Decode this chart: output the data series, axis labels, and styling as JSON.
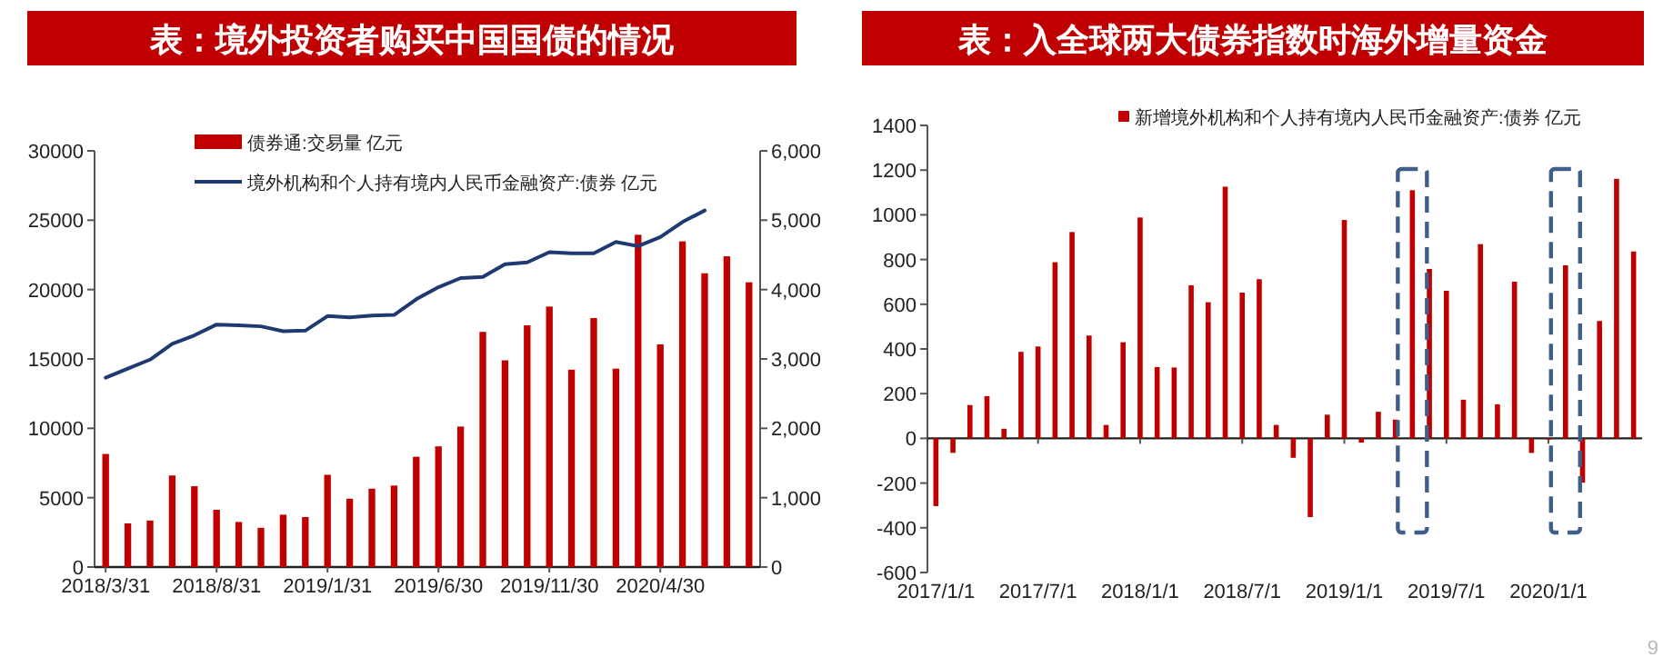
{
  "chart_data": [
    {
      "type": "bar",
      "title": "表：境外投资者购买中国国债的情况",
      "categories": [
        "2018/3/31",
        null,
        null,
        null,
        null,
        "2018/8/31",
        null,
        null,
        null,
        null,
        "2019/1/31",
        null,
        null,
        null,
        null,
        "2019/6/30",
        null,
        null,
        null,
        null,
        "2019/11/30",
        null,
        null,
        null,
        null,
        "2020/4/30",
        null,
        null,
        null,
        null
      ],
      "series": [
        {
          "name": "债券通:交易量 亿元",
          "axis": "y2",
          "color": "#c00000",
          "values": [
            1630,
            630,
            670,
            1320,
            1165,
            825,
            650,
            565,
            755,
            720,
            1330,
            985,
            1130,
            1175,
            1590,
            1740,
            2025,
            3390,
            2980,
            3485,
            3755,
            2845,
            3590,
            2860,
            4790,
            3210,
            4695,
            4235,
            4480,
            4105
          ]
        },
        {
          "name": "境外机构和个人持有境内人民币金融资产:债券 亿元",
          "type": "line",
          "color": "#1f3a70",
          "values": [
            13650,
            14300,
            14950,
            16090,
            16700,
            17480,
            17430,
            17350,
            17000,
            17040,
            18090,
            18000,
            18130,
            18170,
            19300,
            20170,
            20830,
            20910,
            21830,
            21960,
            22700,
            22610,
            22610,
            23430,
            23130,
            23780,
            24870,
            25700,
            null,
            null
          ]
        }
      ],
      "ylim": [
        0,
        30000
      ],
      "yticks": [
        0,
        5000,
        10000,
        15000,
        20000,
        25000,
        30000
      ],
      "y2lim": [
        0,
        6000
      ],
      "y2ticks": [
        {
          "value": 0,
          "label": "0"
        },
        {
          "value": 1000,
          "label": "1,000"
        },
        {
          "value": 2000,
          "label": "2,000"
        },
        {
          "value": 3000,
          "label": "3,000"
        },
        {
          "value": 4000,
          "label": "4,000"
        },
        {
          "value": 5000,
          "label": "5,000"
        },
        {
          "value": 6000,
          "label": "6,000"
        }
      ],
      "legend": "top"
    },
    {
      "type": "bar",
      "title": "表：入全球两大债券指数时海外增量资金",
      "categories": [
        "2017/1/1",
        null,
        null,
        null,
        null,
        null,
        "2017/7/1",
        null,
        null,
        null,
        null,
        null,
        "2018/1/1",
        null,
        null,
        null,
        null,
        null,
        "2018/7/1",
        null,
        null,
        null,
        null,
        null,
        "2019/1/1",
        null,
        null,
        null,
        null,
        null,
        "2019/7/1",
        null,
        null,
        null,
        null,
        null,
        "2020/1/1",
        null,
        null,
        null,
        null,
        null
      ],
      "series": [
        {
          "name": "新增境外机构和个人持有境内人民币金融资产:债券 亿元",
          "color": "#c00000",
          "values": [
            -303,
            -65,
            149,
            189,
            43,
            387,
            411,
            788,
            923,
            460,
            60,
            430,
            988,
            319,
            317,
            685,
            609,
            1126,
            652,
            712,
            60,
            -87,
            -352,
            106,
            977,
            -19,
            119,
            84,
            1110,
            758,
            660,
            173,
            869,
            152,
            701,
            -65,
            -5,
            774,
            -198,
            525,
            1161,
            836
          ]
        }
      ],
      "ylim": [
        -600,
        1400
      ],
      "yticks": [
        -600,
        -400,
        -200,
        0,
        200,
        400,
        600,
        800,
        1000,
        1200,
        1400
      ],
      "legend": "top right",
      "annotations": [
        "9"
      ]
    }
  ]
}
